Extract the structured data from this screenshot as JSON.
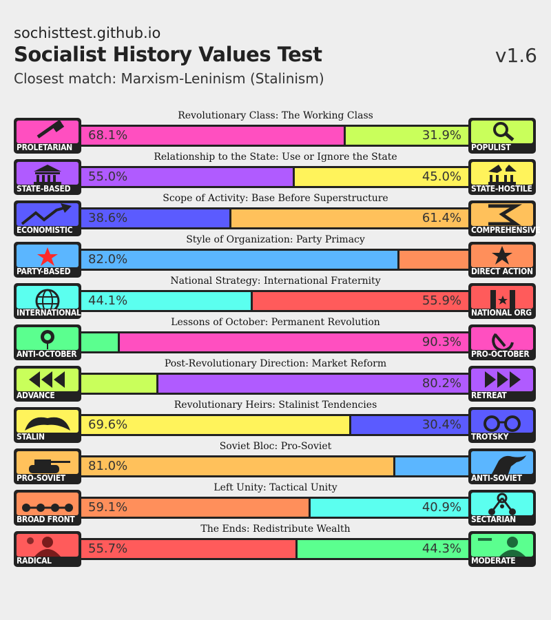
{
  "header": {
    "site": "sochisttest.github.io",
    "title": "Socialist History Values Test",
    "version": "v1.6",
    "match": "Closest match: Marxism-Leninism (Stalinism)"
  },
  "axes": [
    {
      "label": "Revolutionary Class: The Working Class",
      "left": {
        "name": "PROLETARIAN",
        "icon": "hammer-icon",
        "color": "#ff4fc0"
      },
      "right": {
        "name": "POPULIST",
        "icon": "magnifier-icon",
        "color": "#c9ff5b"
      },
      "left_value": 68.1,
      "right_value": 31.9,
      "left_text": "68.1%",
      "right_text": "31.9%"
    },
    {
      "label": "Relationship to the State: Use or Ignore the State",
      "left": {
        "name": "STATE-BASED",
        "icon": "government-building-icon",
        "color": "#b05bff"
      },
      "right": {
        "name": "STATE-HOSTILE",
        "icon": "broken-building-icon",
        "color": "#fff35b"
      },
      "left_value": 55.0,
      "right_value": 45.0,
      "left_text": "55.0%",
      "right_text": "45.0%"
    },
    {
      "label": "Scope of Activity: Base Before Superstructure",
      "left": {
        "name": "ECONOMISTIC",
        "icon": "rising-chart-icon",
        "color": "#5b5bff"
      },
      "right": {
        "name": "COMPREHENSIVE",
        "icon": "arrows-icon",
        "color": "#ffc15b"
      },
      "left_value": 38.6,
      "right_value": 61.4,
      "left_text": "38.6%",
      "right_text": "61.4%"
    },
    {
      "label": "Style of Organization: Party Primacy",
      "left": {
        "name": "PARTY-BASED",
        "icon": "red-star-icon",
        "color": "#5bb6ff"
      },
      "right": {
        "name": "DIRECT ACTION",
        "icon": "black-star-icon",
        "color": "#ff8f5b"
      },
      "left_value": 82.0,
      "right_value": 18.0,
      "left_text": "82.0%",
      "right_text": ""
    },
    {
      "label": "National Strategy: International Fraternity",
      "left": {
        "name": "INTERNATIONAL",
        "icon": "globe-icon",
        "color": "#5bffef"
      },
      "right": {
        "name": "NATIONAL ORG",
        "icon": "national-flag-icon",
        "color": "#ff5b5b"
      },
      "left_value": 44.1,
      "right_value": 55.9,
      "left_text": "44.1%",
      "right_text": "55.9%"
    },
    {
      "label": "Lessons of October: Permanent Revolution",
      "left": {
        "name": "ANTI-OCTOBER",
        "icon": "rose-icon",
        "color": "#5bff8f"
      },
      "right": {
        "name": "PRO-OCTOBER",
        "icon": "hammer-sickle-icon",
        "color": "#ff4fc0"
      },
      "left_value": 9.7,
      "right_value": 90.3,
      "left_text": "",
      "right_text": "90.3%"
    },
    {
      "label": "Post-Revolutionary Direction: Market Reform",
      "left": {
        "name": "ADVANCE",
        "icon": "triangles-left-icon",
        "color": "#c9ff5b"
      },
      "right": {
        "name": "RETREAT",
        "icon": "triangles-right-icon",
        "color": "#b05bff"
      },
      "left_value": 19.8,
      "right_value": 80.2,
      "left_text": "",
      "right_text": "80.2%"
    },
    {
      "label": "Revolutionary Heirs: Stalinist Tendencies",
      "left": {
        "name": "STALIN",
        "icon": "mustache-icon",
        "color": "#fff35b"
      },
      "right": {
        "name": "TROTSKY",
        "icon": "glasses-icon",
        "color": "#5b5bff"
      },
      "left_value": 69.6,
      "right_value": 30.4,
      "left_text": "69.6%",
      "right_text": "30.4%"
    },
    {
      "label": "Soviet Bloc: Pro-Soviet",
      "left": {
        "name": "PRO-SOVIET",
        "icon": "tank-icon",
        "color": "#ffc15b"
      },
      "right": {
        "name": "ANTI-SOVIET",
        "icon": "horse-icon",
        "color": "#5bb6ff"
      },
      "left_value": 81.0,
      "right_value": 19.0,
      "left_text": "81.0%",
      "right_text": ""
    },
    {
      "label": "Left Unity: Tactical Unity",
      "left": {
        "name": "BROAD FRONT",
        "icon": "linked-dots-icon",
        "color": "#ff8f5b"
      },
      "right": {
        "name": "SECTARIAN",
        "icon": "network-nodes-icon",
        "color": "#5bffef"
      },
      "left_value": 59.1,
      "right_value": 40.9,
      "left_text": "59.1%",
      "right_text": "40.9%"
    },
    {
      "label": "The Ends: Redistribute Wealth",
      "left": {
        "name": "RADICAL",
        "icon": "portrait-red-icon",
        "color": "#ff5b5b"
      },
      "right": {
        "name": "MODERATE",
        "icon": "portrait-green-icon",
        "color": "#5bff8f"
      },
      "left_value": 55.7,
      "right_value": 44.3,
      "left_text": "55.7%",
      "right_text": "44.3%"
    }
  ]
}
